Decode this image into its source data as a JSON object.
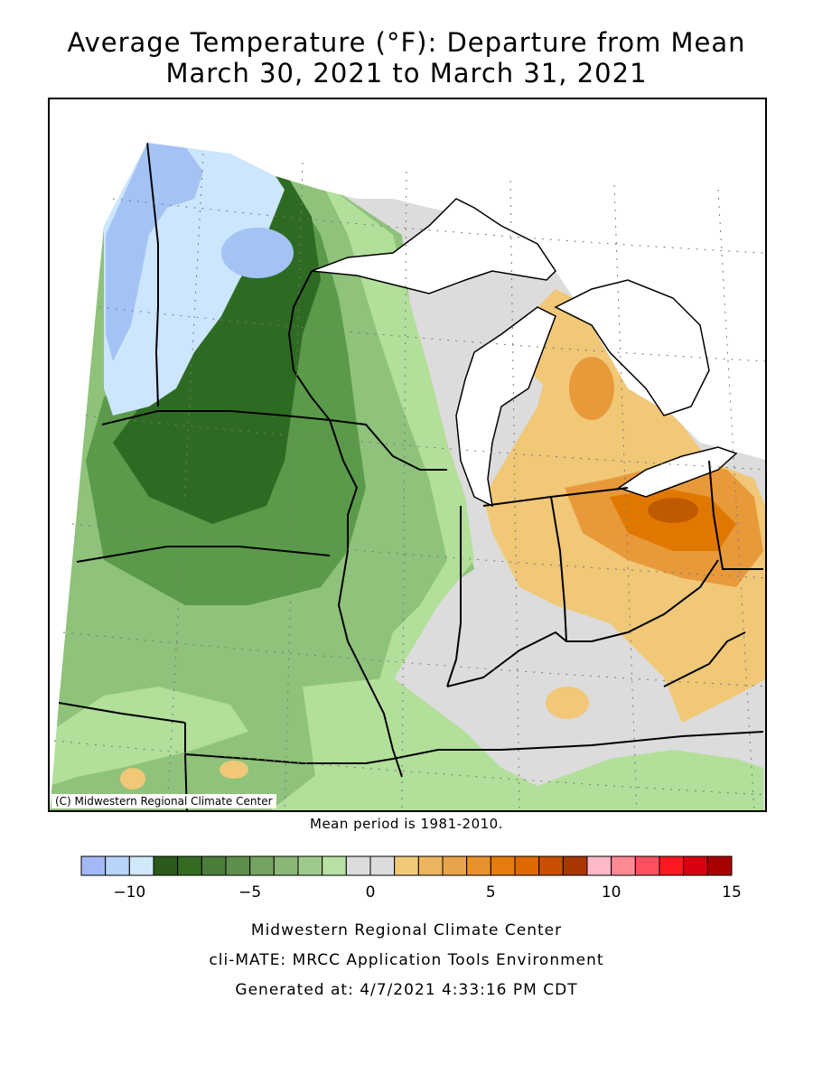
{
  "title": {
    "line1": "Average Temperature (°F): Departure from Mean",
    "line2": "March 30, 2021 to March 31, 2021"
  },
  "map": {
    "copyright": "(C) Midwestern Regional Climate Center",
    "mean_period": "Mean period is 1981-2010.",
    "colors": {
      "lake": "#ffffff",
      "neutral": "#dcdcdc",
      "green_light": "#b2df9a",
      "green_mid": "#8fc27a",
      "green_dark": "#5a9a4a",
      "green_darkest": "#2e6b22",
      "blue_light": "#cce6ff",
      "blue": "#a4c2f4",
      "orange_light": "#f0c878",
      "orange": "#e89a3a",
      "orange_dark": "#e07800",
      "orange_darkest": "#c05a00"
    }
  },
  "legend": {
    "colors": [
      "#a4b8f8",
      "#b8d4f8",
      "#d0e8f8",
      "#2b5a1a",
      "#336b22",
      "#4a7c3a",
      "#5e8f4c",
      "#74a260",
      "#8ab676",
      "#a0ca8c",
      "#b8e0a4",
      "#dcdcdc",
      "#dcdcdc",
      "#f0ca78",
      "#ecb45e",
      "#e8a44a",
      "#e89030",
      "#e47c10",
      "#dc6a00",
      "#c85000",
      "#a83600",
      "#ffb8c8",
      "#ff8a94",
      "#ff5060",
      "#ff1820",
      "#d80010",
      "#a80000"
    ],
    "min": -12,
    "max": 15,
    "ticks": [
      {
        "value": -10,
        "label": "−10"
      },
      {
        "value": -5,
        "label": "−5"
      },
      {
        "value": 0,
        "label": "0"
      },
      {
        "value": 5,
        "label": "5"
      },
      {
        "value": 10,
        "label": "10"
      },
      {
        "value": 15,
        "label": "15"
      }
    ]
  },
  "footer": {
    "line1": "Midwestern Regional Climate Center",
    "line2": "cli-MATE: MRCC Application Tools Environment",
    "line3": "Generated at: 4/7/2021 4:33:16 PM CDT"
  }
}
